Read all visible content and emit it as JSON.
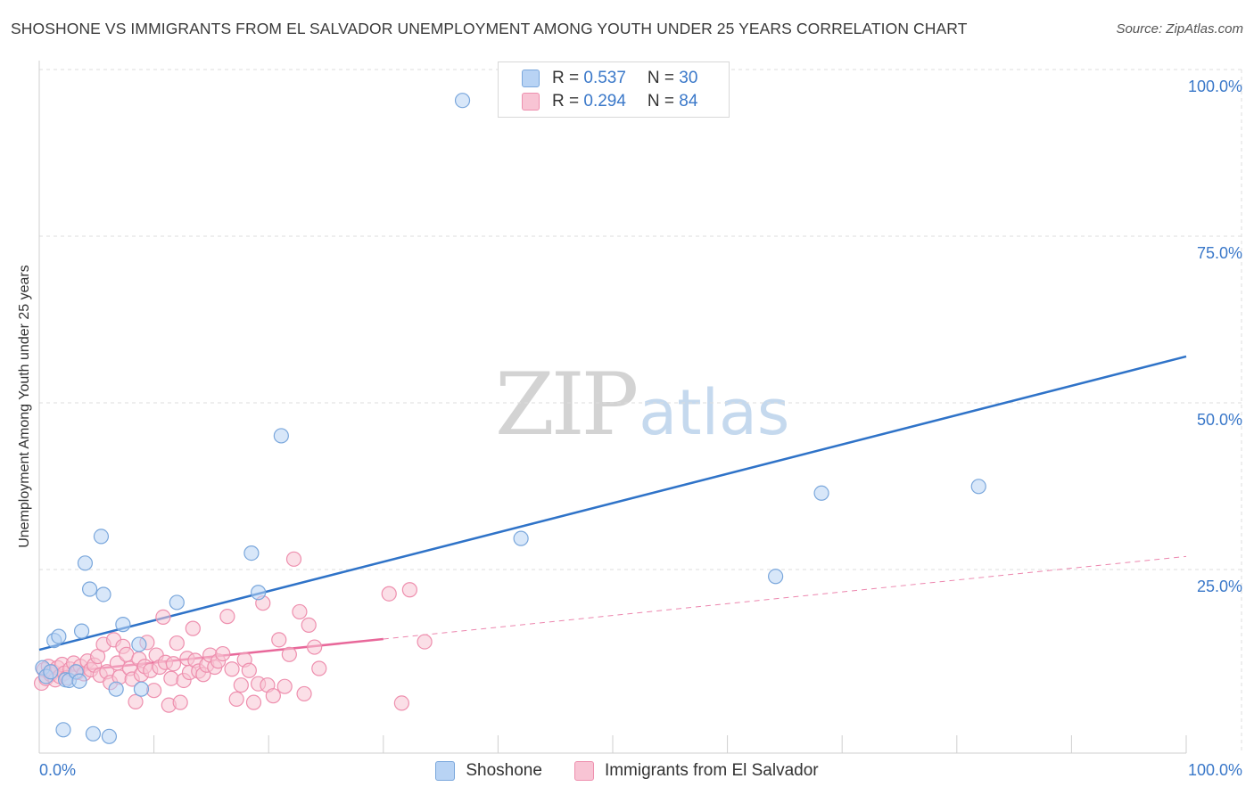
{
  "title": "SHOSHONE VS IMMIGRANTS FROM EL SALVADOR UNEMPLOYMENT AMONG YOUTH UNDER 25 YEARS CORRELATION CHART",
  "source": "Source: ZipAtlas.com",
  "watermark": {
    "zip": "ZIP",
    "atlas": "atlas"
  },
  "legend": {
    "series1": {
      "r_label": "R = ",
      "r_value": "0.537",
      "n_label": "N = ",
      "n_value": "30"
    },
    "series2": {
      "r_label": "R = ",
      "r_value": "0.294",
      "n_label": "N = ",
      "n_value": "84"
    }
  },
  "colors": {
    "shoshone_fill": "#b8d3f4",
    "shoshone_edge": "#7aa7dc",
    "shoshone_line": "#2f73c8",
    "salvador_fill": "#f8c4d4",
    "salvador_edge": "#ee8fae",
    "salvador_line": "#e8689a",
    "tick_label": "#3a78c9",
    "grid": "#dddddd"
  },
  "chart_data": {
    "type": "scatter",
    "title": "SHOSHONE VS IMMIGRANTS FROM EL SALVADOR UNEMPLOYMENT AMONG YOUTH UNDER 25 YEARS CORRELATION CHART",
    "xlabel": "",
    "ylabel": "Unemployment Among Youth under 25 years",
    "xlim": [
      0,
      100
    ],
    "ylim": [
      0,
      100
    ],
    "x_tick_labels": [
      {
        "value": 0,
        "label": "0.0%"
      },
      {
        "value": 100,
        "label": "100.0%"
      }
    ],
    "y_tick_labels": [
      {
        "value": 25,
        "label": "25.0%"
      },
      {
        "value": 50,
        "label": "50.0%"
      },
      {
        "value": 75,
        "label": "75.0%"
      },
      {
        "value": 100,
        "label": "100.0%"
      }
    ],
    "legend_position": "top-center",
    "series": [
      {
        "name": "Shoshone",
        "r": 0.537,
        "n": 30,
        "trend": {
          "x0": 0,
          "y0": 15.5,
          "x1": 100,
          "y1": 59.5,
          "dashed_from": null
        },
        "points": [
          [
            0.3,
            12.8
          ],
          [
            0.6,
            11.5
          ],
          [
            1.0,
            12.2
          ],
          [
            1.3,
            16.9
          ],
          [
            1.7,
            17.5
          ],
          [
            2.1,
            3.5
          ],
          [
            2.3,
            11.0
          ],
          [
            2.6,
            10.9
          ],
          [
            3.2,
            12.2
          ],
          [
            3.5,
            10.8
          ],
          [
            3.7,
            18.3
          ],
          [
            4.0,
            28.5
          ],
          [
            4.4,
            24.6
          ],
          [
            4.7,
            2.9
          ],
          [
            5.4,
            32.5
          ],
          [
            5.6,
            23.8
          ],
          [
            6.1,
            2.5
          ],
          [
            6.7,
            9.6
          ],
          [
            7.3,
            19.3
          ],
          [
            8.7,
            16.3
          ],
          [
            8.9,
            9.6
          ],
          [
            12.0,
            22.6
          ],
          [
            18.5,
            30.0
          ],
          [
            19.1,
            24.1
          ],
          [
            21.1,
            47.6
          ],
          [
            36.9,
            97.9
          ],
          [
            42.0,
            32.2
          ],
          [
            64.2,
            26.5
          ],
          [
            68.2,
            39.0
          ],
          [
            81.9,
            40.0
          ]
        ]
      },
      {
        "name": "Immigrants from El Salvador",
        "r": 0.294,
        "n": 84,
        "trend": {
          "x0": 0,
          "y0": 11.8,
          "x1": 100,
          "y1": 29.5,
          "dashed_from": 30
        },
        "points": [
          [
            0.2,
            10.5
          ],
          [
            0.4,
            12.5
          ],
          [
            0.6,
            11.2
          ],
          [
            0.8,
            13.0
          ],
          [
            1.0,
            11.8
          ],
          [
            1.2,
            12.2
          ],
          [
            1.4,
            11.0
          ],
          [
            1.6,
            12.8
          ],
          [
            1.8,
            11.5
          ],
          [
            2.0,
            13.3
          ],
          [
            2.2,
            12.0
          ],
          [
            2.4,
            11.3
          ],
          [
            2.7,
            12.6
          ],
          [
            3.0,
            13.5
          ],
          [
            3.3,
            12.1
          ],
          [
            3.6,
            13.0
          ],
          [
            3.9,
            11.9
          ],
          [
            4.2,
            13.8
          ],
          [
            4.5,
            12.5
          ],
          [
            4.8,
            13.2
          ],
          [
            5.1,
            14.5
          ],
          [
            5.3,
            11.7
          ],
          [
            5.6,
            16.3
          ],
          [
            5.9,
            12.2
          ],
          [
            6.2,
            10.6
          ],
          [
            6.5,
            17.0
          ],
          [
            6.8,
            13.5
          ],
          [
            7.0,
            11.4
          ],
          [
            7.3,
            16.0
          ],
          [
            7.6,
            14.8
          ],
          [
            7.9,
            12.7
          ],
          [
            8.1,
            11.1
          ],
          [
            8.4,
            7.7
          ],
          [
            8.7,
            14.1
          ],
          [
            8.9,
            11.8
          ],
          [
            9.2,
            13.0
          ],
          [
            9.4,
            16.6
          ],
          [
            9.7,
            12.4
          ],
          [
            10.0,
            9.4
          ],
          [
            10.2,
            14.7
          ],
          [
            10.5,
            12.9
          ],
          [
            10.8,
            20.4
          ],
          [
            11.0,
            13.6
          ],
          [
            11.3,
            7.2
          ],
          [
            11.5,
            11.2
          ],
          [
            11.7,
            13.4
          ],
          [
            12.0,
            16.5
          ],
          [
            12.3,
            7.6
          ],
          [
            12.6,
            10.9
          ],
          [
            12.9,
            14.2
          ],
          [
            13.1,
            12.1
          ],
          [
            13.4,
            18.7
          ],
          [
            13.6,
            13.9
          ],
          [
            13.9,
            12.3
          ],
          [
            14.3,
            11.8
          ],
          [
            14.6,
            13.2
          ],
          [
            14.9,
            14.7
          ],
          [
            15.3,
            12.9
          ],
          [
            15.6,
            13.8
          ],
          [
            16.0,
            14.9
          ],
          [
            16.4,
            20.5
          ],
          [
            16.8,
            12.6
          ],
          [
            17.2,
            8.1
          ],
          [
            17.6,
            10.2
          ],
          [
            17.9,
            14.0
          ],
          [
            18.3,
            12.4
          ],
          [
            18.7,
            7.6
          ],
          [
            19.1,
            10.4
          ],
          [
            19.5,
            22.5
          ],
          [
            19.9,
            10.2
          ],
          [
            20.4,
            8.6
          ],
          [
            20.9,
            17.0
          ],
          [
            21.4,
            10.0
          ],
          [
            21.8,
            14.8
          ],
          [
            22.2,
            29.1
          ],
          [
            22.7,
            21.2
          ],
          [
            23.1,
            8.9
          ],
          [
            23.5,
            19.2
          ],
          [
            24.0,
            15.9
          ],
          [
            24.4,
            12.7
          ],
          [
            30.5,
            23.9
          ],
          [
            31.6,
            7.5
          ],
          [
            32.3,
            24.5
          ],
          [
            33.6,
            16.7
          ]
        ]
      }
    ]
  }
}
